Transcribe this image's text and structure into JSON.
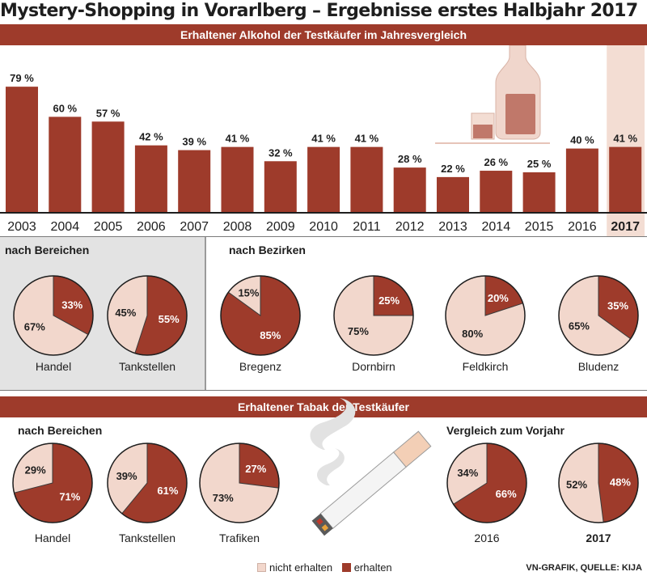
{
  "title": "Mystery-Shopping in Vorarlberg – Ergebnisse erstes Halbjahr 2017",
  "colors": {
    "erhalten": "#9e3b2b",
    "nicht_erhalten": "#f2d7cc",
    "highlight": "#f3ddd3",
    "grey_panel": "#e3e3e3"
  },
  "sections": {
    "alcohol_header": "Erhaltener Alkohol der Testkäufer im Jahresvergleich",
    "alcohol_bereiche": "nach Bereichen",
    "alcohol_bezirke": "nach Bezirken",
    "tobacco_header": "Erhaltener Tabak der Testkäufer",
    "tobacco_bereiche": "nach Bereichen",
    "tobacco_vorjahr": "Vergleich zum Vorjahr"
  },
  "legend": {
    "not_received": "nicht erhalten",
    "received": "erhalten"
  },
  "source": "VN-GRAFIK, QUELLE: KIJA",
  "chart_data": [
    {
      "type": "bar",
      "title": "Erhaltener Alkohol der Testkäufer im Jahresvergleich",
      "categories": [
        "2003",
        "2004",
        "2005",
        "2006",
        "2007",
        "2008",
        "2009",
        "2010",
        "2011",
        "2012",
        "2013",
        "2014",
        "2015",
        "2016",
        "2017"
      ],
      "values": [
        79,
        60,
        57,
        42,
        39,
        41,
        32,
        41,
        41,
        28,
        22,
        26,
        25,
        40,
        41
      ],
      "value_labels": [
        "79 %",
        "60 %",
        "57 %",
        "42 %",
        "39 %",
        "41 %",
        "32 %",
        "41 %",
        "41 %",
        "28 %",
        "22 %",
        "26 %",
        "25 %",
        "40 %",
        "41 %"
      ],
      "highlight": "2017",
      "unit": "%",
      "ylim": [
        0,
        100
      ]
    },
    {
      "type": "pie",
      "title": "Alkohol nach Bereichen",
      "items": [
        {
          "label": "Handel",
          "erhalten": 33,
          "nicht_erhalten": 67,
          "erhalten_label": "33%",
          "nicht_label": "67%"
        },
        {
          "label": "Tankstellen",
          "erhalten": 55,
          "nicht_erhalten": 45,
          "erhalten_label": "55%",
          "nicht_label": "45%"
        }
      ]
    },
    {
      "type": "pie",
      "title": "Alkohol nach Bezirken",
      "items": [
        {
          "label": "Bregenz",
          "erhalten": 85,
          "nicht_erhalten": 15,
          "erhalten_label": "85%",
          "nicht_label": "15%"
        },
        {
          "label": "Dornbirn",
          "erhalten": 25,
          "nicht_erhalten": 75,
          "erhalten_label": "25%",
          "nicht_label": "75%"
        },
        {
          "label": "Feldkirch",
          "erhalten": 20,
          "nicht_erhalten": 80,
          "erhalten_label": "20%",
          "nicht_label": "80%"
        },
        {
          "label": "Bludenz",
          "erhalten": 35,
          "nicht_erhalten": 65,
          "erhalten_label": "35%",
          "nicht_label": "65%"
        }
      ]
    },
    {
      "type": "pie",
      "title": "Tabak nach Bereichen",
      "items": [
        {
          "label": "Handel",
          "erhalten": 71,
          "nicht_erhalten": 29,
          "erhalten_label": "71%",
          "nicht_label": "29%"
        },
        {
          "label": "Tankstellen",
          "erhalten": 61,
          "nicht_erhalten": 39,
          "erhalten_label": "61%",
          "nicht_label": "39%"
        },
        {
          "label": "Trafiken",
          "erhalten": 27,
          "nicht_erhalten": 73,
          "erhalten_label": "27%",
          "nicht_label": "73%"
        }
      ]
    },
    {
      "type": "pie",
      "title": "Tabak Vergleich zum Vorjahr",
      "items": [
        {
          "label": "2016",
          "erhalten": 66,
          "nicht_erhalten": 34,
          "erhalten_label": "66%",
          "nicht_label": "34%"
        },
        {
          "label": "2017",
          "erhalten": 48,
          "nicht_erhalten": 52,
          "erhalten_label": "48%",
          "nicht_label": "52%",
          "bold": true
        }
      ]
    }
  ]
}
